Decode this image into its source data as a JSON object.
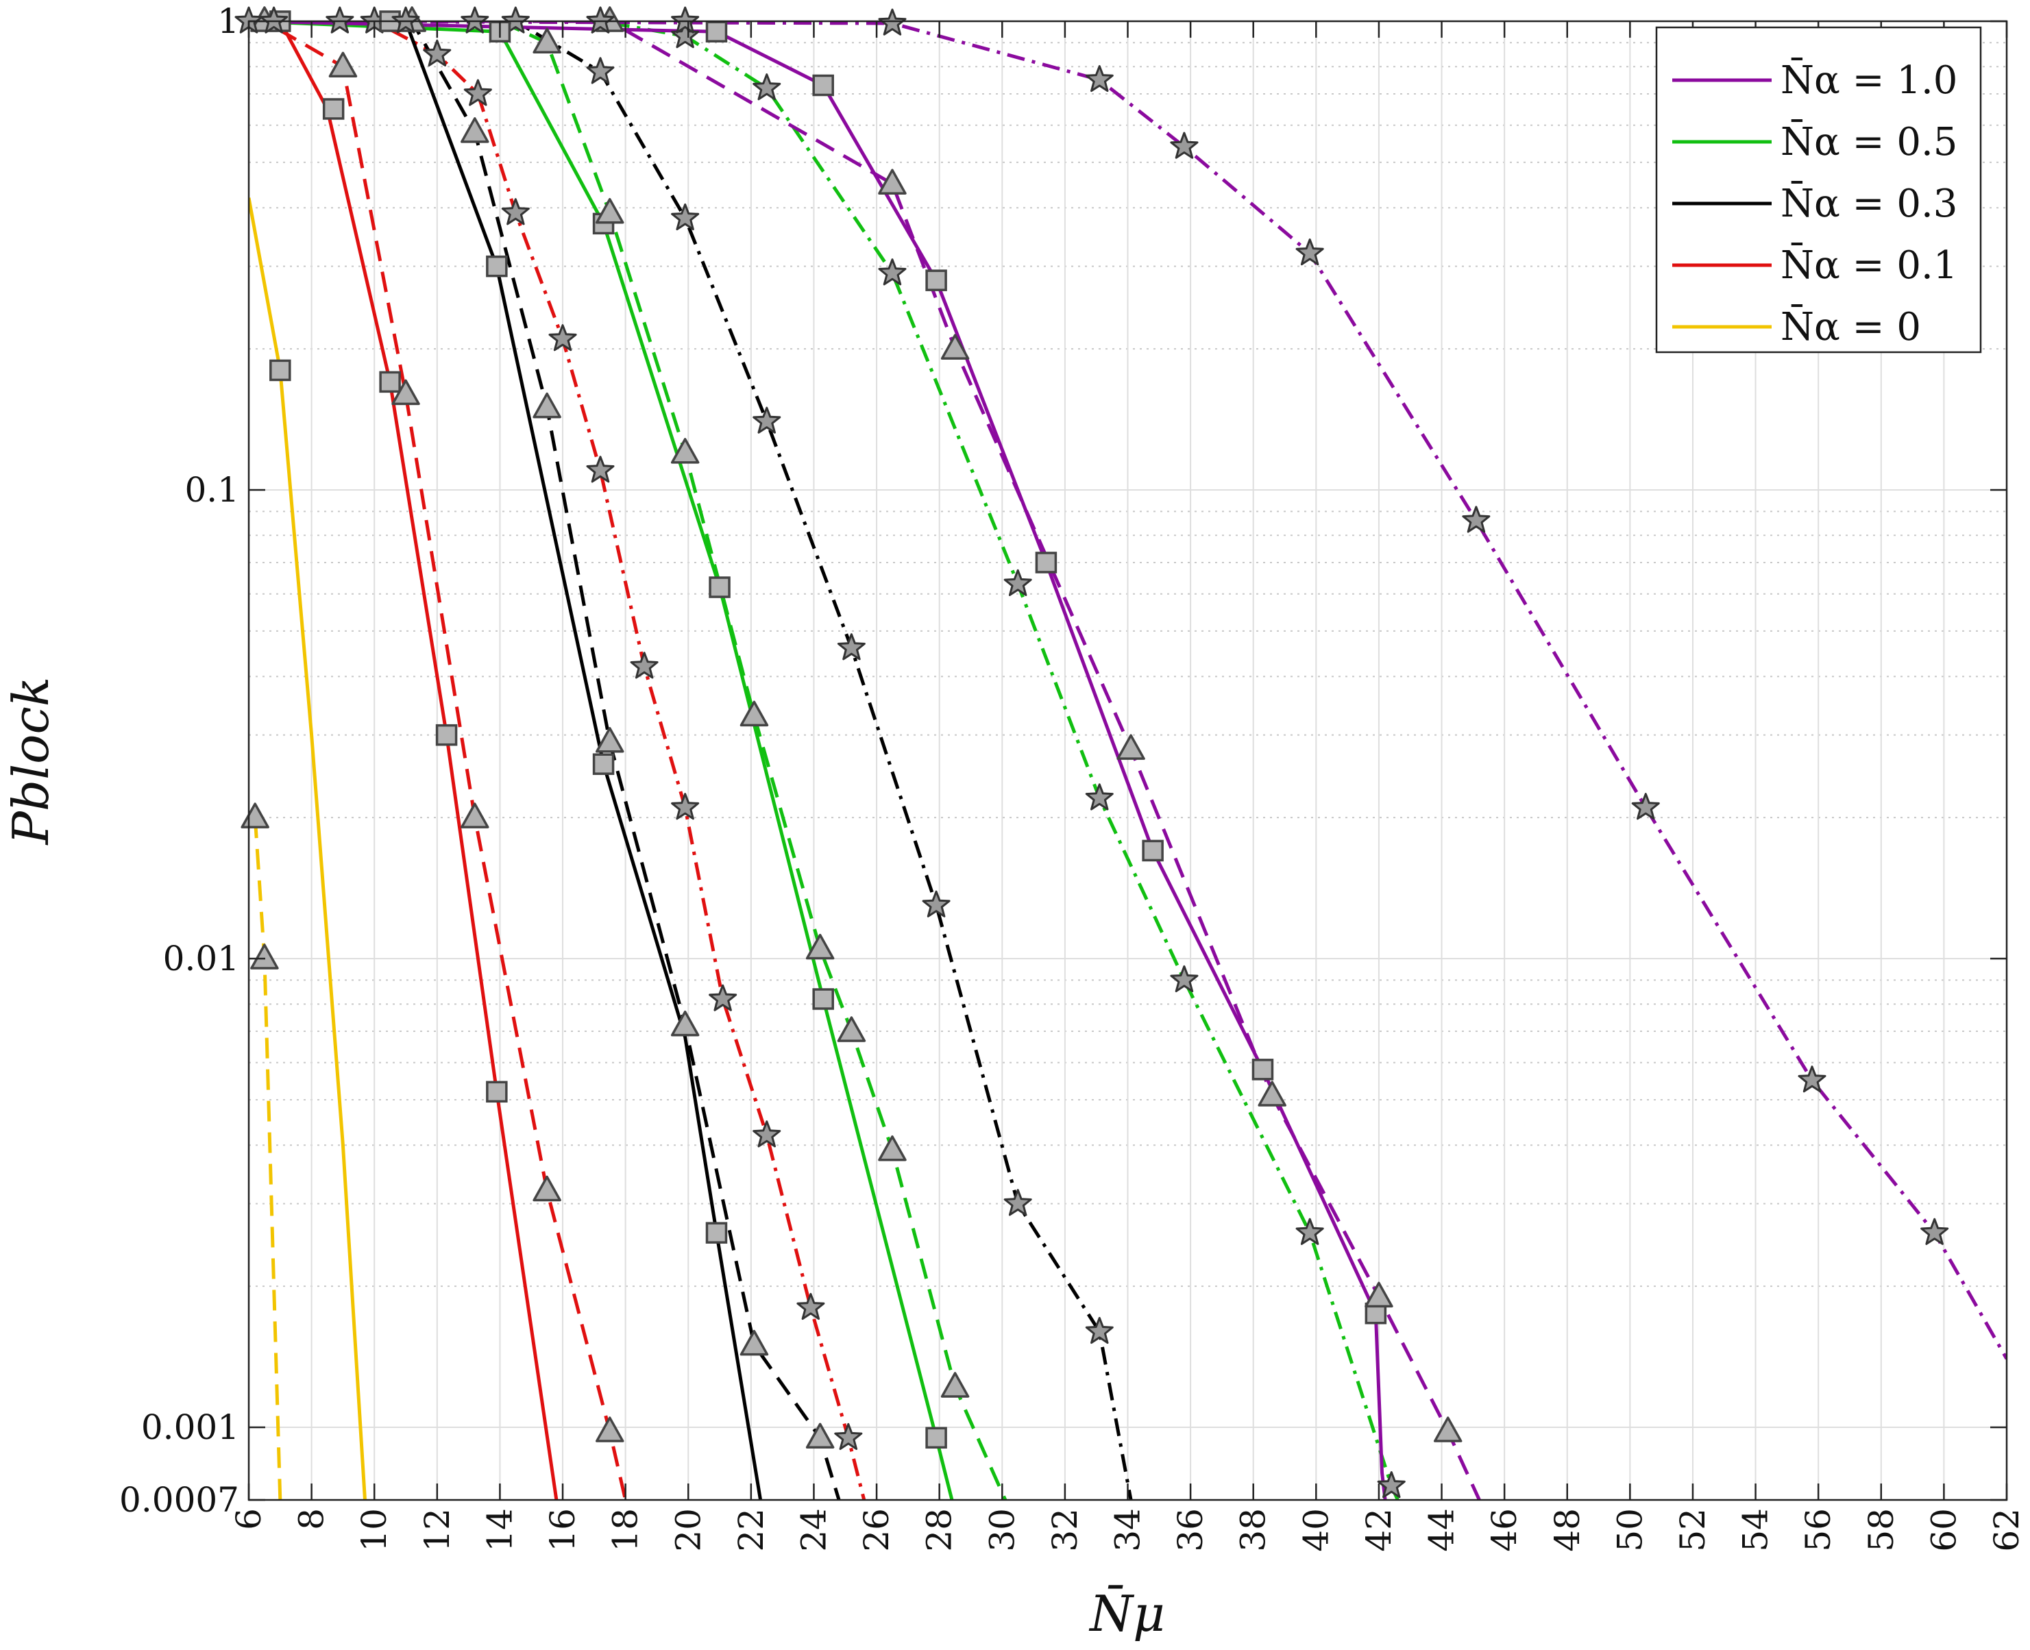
{
  "chart_data": {
    "type": "line",
    "xlabel": "N̄μ",
    "ylabel": "Pblock",
    "xlim": [
      6,
      62
    ],
    "ylim": [
      0.0007,
      1
    ],
    "yscale": "log",
    "grid": true,
    "legend_position": "top-right",
    "x_ticks": [
      "6",
      "8",
      "10",
      "12",
      "14",
      "16",
      "18",
      "20",
      "22",
      "24",
      "26",
      "28",
      "30",
      "32",
      "34",
      "36",
      "38",
      "40",
      "42",
      "44",
      "46",
      "48",
      "50",
      "52",
      "54",
      "56",
      "58",
      "60",
      "62"
    ],
    "y_ticks": [
      "1",
      "0.1",
      "0.01",
      "0.001",
      "0.0007"
    ],
    "legend": [
      {
        "label": "N̄α = 1.0",
        "color": "#8B0A9E"
      },
      {
        "label": "N̄α = 0.5",
        "color": "#11BF11"
      },
      {
        "label": "N̄α = 0.3",
        "color": "#000000"
      },
      {
        "label": "N̄α = 0.1",
        "color": "#E01010"
      },
      {
        "label": "N̄α = 0",
        "color": "#F2C400"
      }
    ],
    "series": [
      {
        "group": "N̄α = 0",
        "color": "#F2C400",
        "style": "solid",
        "marker": "square",
        "x": [
          6.0,
          7.0,
          8.0,
          9.0,
          9.7
        ],
        "y": [
          0.42,
          0.18,
          0.03,
          0.004,
          0.0007
        ],
        "marker_x": [
          7.0
        ],
        "marker_y": [
          0.18
        ]
      },
      {
        "group": "N̄α = 0",
        "color": "#F2C400",
        "style": "dashed",
        "marker": "triangle",
        "x": [
          6.2,
          6.5,
          6.8,
          7.0
        ],
        "y": [
          0.02,
          0.01,
          0.002,
          0.0007
        ],
        "marker_x": [
          6.2,
          6.5
        ],
        "marker_y": [
          0.02,
          0.01
        ]
      },
      {
        "group": "N̄α = 0.1",
        "color": "#E01010",
        "style": "solid",
        "marker": "square",
        "x": [
          6.0,
          7.0,
          8.5,
          10.5,
          12.3,
          13.9,
          15.8
        ],
        "y": [
          1.0,
          1.0,
          0.65,
          0.17,
          0.03,
          0.0052,
          0.0007
        ],
        "marker_x": [
          7.0,
          8.7,
          10.5,
          12.3,
          13.9
        ],
        "marker_y": [
          1.0,
          0.65,
          0.17,
          0.03,
          0.0052
        ]
      },
      {
        "group": "N̄α = 0.1",
        "color": "#E01010",
        "style": "dashed",
        "marker": "triangle",
        "x": [
          6.0,
          6.5,
          9.0,
          11.0,
          13.2,
          15.5,
          17.5,
          18.0
        ],
        "y": [
          1.0,
          1.0,
          0.8,
          0.16,
          0.02,
          0.0032,
          0.00098,
          0.0007
        ],
        "marker_x": [
          6.5,
          9.0,
          11.0,
          13.2,
          15.5,
          17.5
        ],
        "marker_y": [
          1.0,
          0.8,
          0.16,
          0.02,
          0.0032,
          0.00098
        ]
      },
      {
        "group": "N̄α = 0.1",
        "color": "#E01010",
        "style": "dashdot",
        "marker": "star",
        "x": [
          6.0,
          10.0,
          12.0,
          13.3,
          14.5,
          16.0,
          17.2,
          18.6,
          19.9,
          21.1,
          22.5,
          23.9,
          25.1,
          25.6
        ],
        "y": [
          1.0,
          1.0,
          0.85,
          0.7,
          0.39,
          0.21,
          0.11,
          0.042,
          0.021,
          0.0082,
          0.0042,
          0.0018,
          0.00095,
          0.0007
        ],
        "marker_x": [
          10.0,
          12.0,
          13.3,
          14.5,
          16.0,
          17.2,
          18.6,
          19.9,
          21.1,
          22.5,
          23.9,
          25.1
        ],
        "marker_y": [
          1.0,
          0.85,
          0.7,
          0.39,
          0.21,
          0.11,
          0.042,
          0.021,
          0.0082,
          0.0042,
          0.0018,
          0.00095
        ]
      },
      {
        "group": "N̄α = 0.3",
        "color": "#000000",
        "style": "solid",
        "marker": "square",
        "x": [
          6.0,
          10.5,
          11.0,
          13.9,
          17.3,
          19.9,
          20.9,
          22.3
        ],
        "y": [
          1.0,
          1.0,
          1.0,
          0.3,
          0.026,
          0.0068,
          0.0026,
          0.0007
        ],
        "marker_x": [
          10.5,
          13.9,
          17.3,
          20.9
        ],
        "marker_y": [
          1.0,
          0.3,
          0.026,
          0.0026
        ]
      },
      {
        "group": "N̄α = 0.3",
        "color": "#000000",
        "style": "dashed",
        "marker": "triangle",
        "x": [
          6.0,
          11.2,
          13.2,
          15.5,
          17.5,
          19.9,
          22.1,
          24.2,
          24.8
        ],
        "y": [
          1.0,
          1.0,
          0.58,
          0.15,
          0.029,
          0.0072,
          0.0015,
          0.00095,
          0.0007
        ],
        "marker_x": [
          11.2,
          13.2,
          15.5,
          17.5,
          19.9,
          22.1,
          24.2
        ],
        "marker_y": [
          1.0,
          0.58,
          0.15,
          0.029,
          0.0072,
          0.0015,
          0.00095
        ]
      },
      {
        "group": "N̄α = 0.3",
        "color": "#000000",
        "style": "dashdot",
        "marker": "star",
        "x": [
          6.0,
          14.5,
          17.2,
          19.9,
          22.5,
          25.2,
          27.9,
          30.5,
          33.1,
          34.1
        ],
        "y": [
          1.0,
          1.0,
          0.78,
          0.38,
          0.14,
          0.046,
          0.013,
          0.003,
          0.0016,
          0.0007
        ],
        "marker_x": [
          14.5,
          17.2,
          19.9,
          22.5,
          25.2,
          27.9,
          30.5,
          33.1
        ],
        "marker_y": [
          1.0,
          0.78,
          0.38,
          0.14,
          0.046,
          0.013,
          0.003,
          0.0016
        ]
      },
      {
        "group": "N̄α = 0.5",
        "color": "#11BF11",
        "style": "solid",
        "marker": "square",
        "x": [
          6.0,
          14.0,
          17.3,
          21.0,
          24.3,
          27.9,
          28.4
        ],
        "y": [
          1.0,
          0.95,
          0.37,
          0.062,
          0.0082,
          0.00095,
          0.0007
        ],
        "marker_x": [
          14.0,
          17.3,
          21.0,
          24.3,
          27.9
        ],
        "marker_y": [
          0.95,
          0.37,
          0.062,
          0.0082,
          0.00095
        ]
      },
      {
        "group": "N̄α = 0.5",
        "color": "#11BF11",
        "style": "dashed",
        "marker": "triangle",
        "x": [
          6.0,
          14.0,
          15.5,
          17.5,
          19.9,
          22.1,
          24.2,
          25.2,
          26.5,
          28.5,
          30.1
        ],
        "y": [
          1.0,
          1.0,
          0.9,
          0.39,
          0.12,
          0.033,
          0.0105,
          0.007,
          0.0039,
          0.00122,
          0.0007
        ],
        "marker_x": [
          15.5,
          17.5,
          19.9,
          22.1,
          24.2,
          25.2,
          26.5,
          28.5
        ],
        "marker_y": [
          0.9,
          0.39,
          0.12,
          0.033,
          0.0105,
          0.007,
          0.0039,
          0.00122
        ]
      },
      {
        "group": "N̄α = 0.5",
        "color": "#11BF11",
        "style": "dashdot",
        "marker": "star",
        "x": [
          6.0,
          17.2,
          19.9,
          22.5,
          26.5,
          30.5,
          33.1,
          35.8,
          39.8,
          42.4,
          42.6
        ],
        "y": [
          1.0,
          1.0,
          0.93,
          0.72,
          0.29,
          0.063,
          0.022,
          0.009,
          0.0026,
          0.00075,
          0.0007
        ],
        "marker_x": [
          17.2,
          19.9,
          22.5,
          26.5,
          30.5,
          33.1,
          35.8,
          39.8,
          42.4
        ],
        "marker_y": [
          1.0,
          0.93,
          0.72,
          0.29,
          0.063,
          0.022,
          0.009,
          0.0026,
          0.00075
        ]
      },
      {
        "group": "N̄α = 1.0",
        "color": "#8B0A9E",
        "style": "solid",
        "marker": "square",
        "x": [
          6.0,
          20.9,
          24.3,
          27.9,
          31.4,
          34.8,
          38.3,
          41.9,
          42.1,
          42.2
        ],
        "y": [
          1.0,
          0.95,
          0.73,
          0.28,
          0.07,
          0.017,
          0.0058,
          0.00175,
          0.0008,
          0.0007
        ],
        "marker_x": [
          20.9,
          24.3,
          27.9,
          31.4,
          34.8,
          38.3,
          41.9
        ],
        "marker_y": [
          0.95,
          0.73,
          0.28,
          0.07,
          0.017,
          0.0058,
          0.00175
        ]
      },
      {
        "group": "N̄α = 1.0",
        "color": "#8B0A9E",
        "style": "dashed",
        "marker": "triangle",
        "x": [
          6.0,
          17.5,
          26.5,
          28.5,
          34.1,
          38.6,
          42.0,
          44.2,
          45.2
        ],
        "y": [
          1.0,
          1.0,
          0.45,
          0.2,
          0.028,
          0.0051,
          0.0019,
          0.00098,
          0.0007
        ],
        "marker_x": [
          17.5,
          26.5,
          28.5,
          34.1,
          38.6,
          42.0,
          44.2
        ],
        "marker_y": [
          1.0,
          0.45,
          0.2,
          0.028,
          0.0051,
          0.0019,
          0.00098
        ]
      },
      {
        "group": "N̄α = 1.0",
        "color": "#8B0A9E",
        "style": "dashdot",
        "marker": "star",
        "x": [
          6.0,
          26.5,
          33.1,
          35.8,
          39.8,
          45.1,
          50.5,
          55.8,
          59.7,
          62.0
        ],
        "y": [
          1.0,
          0.99,
          0.75,
          0.54,
          0.32,
          0.086,
          0.021,
          0.0055,
          0.0026,
          0.0014
        ],
        "marker_x": [
          6.0,
          6.8,
          8.9,
          11.0,
          13.2,
          17.2,
          19.9,
          26.5,
          33.1,
          35.8,
          39.8,
          45.1,
          50.5,
          55.8,
          59.7
        ],
        "marker_y": [
          1.0,
          1.0,
          1.0,
          1.0,
          1.0,
          1.0,
          1.0,
          0.99,
          0.75,
          0.54,
          0.32,
          0.086,
          0.021,
          0.0055,
          0.0026
        ]
      }
    ]
  }
}
